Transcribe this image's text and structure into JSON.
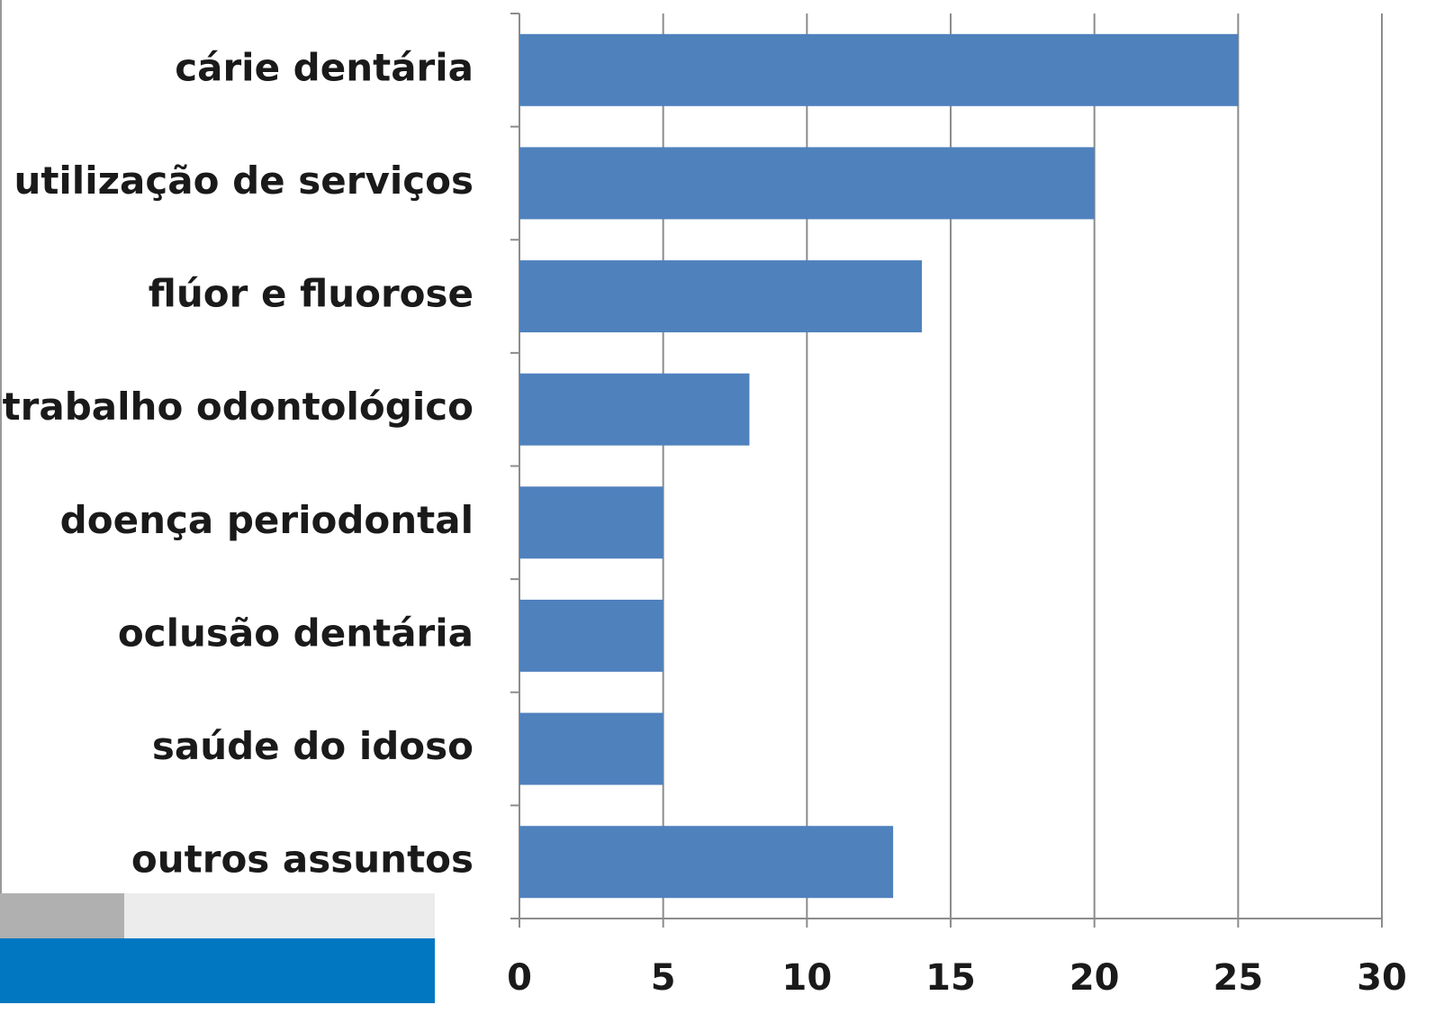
{
  "chart_data": {
    "type": "bar",
    "orientation": "horizontal",
    "categories": [
      "cárie dentária",
      "utilização de serviços",
      "flúor e fluorose",
      "trabalho odontológico",
      "doença periodontal",
      "oclusão dentária",
      "saúde do idoso",
      "outros assuntos"
    ],
    "values": [
      25,
      20,
      14,
      8,
      5,
      5,
      5,
      13
    ],
    "color": "#4f81bd",
    "xlim": [
      0,
      30
    ],
    "xticks": [
      0,
      5,
      10,
      15,
      20,
      25,
      30
    ],
    "grid": true
  }
}
